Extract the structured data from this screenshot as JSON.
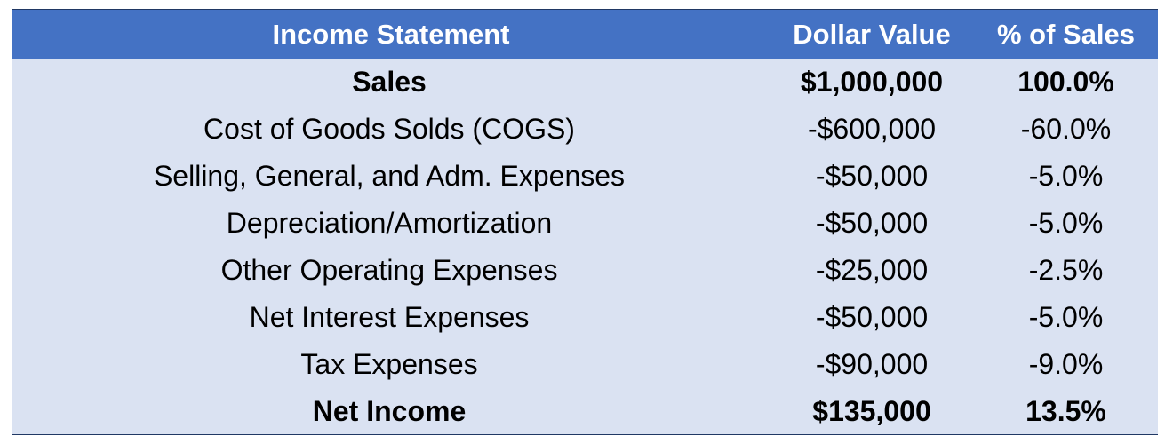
{
  "header": {
    "label": "Income Statement",
    "value": "Dollar Value",
    "pct": "% of Sales"
  },
  "rows": [
    {
      "label": "Sales",
      "value": "$1,000,000",
      "pct": "100.0%",
      "bold": true
    },
    {
      "label": "Cost of Goods Solds (COGS)",
      "value": "-$600,000",
      "pct": "-60.0%",
      "bold": false
    },
    {
      "label": "Selling, General, and Adm. Expenses",
      "value": "-$50,000",
      "pct": "-5.0%",
      "bold": false
    },
    {
      "label": "Depreciation/Amortization",
      "value": "-$50,000",
      "pct": "-5.0%",
      "bold": false
    },
    {
      "label": "Other Operating Expenses",
      "value": "-$25,000",
      "pct": "-2.5%",
      "bold": false
    },
    {
      "label": "Net Interest Expenses",
      "value": "-$50,000",
      "pct": "-5.0%",
      "bold": false
    },
    {
      "label": "Tax Expenses",
      "value": "-$90,000",
      "pct": "-9.0%",
      "bold": false
    },
    {
      "label": "Net Income",
      "value": "$135,000",
      "pct": "13.5%",
      "bold": true
    }
  ],
  "colors": {
    "header_bg": "#4472c4",
    "header_text": "#ffffff",
    "row_bg": "#dae2f2",
    "border": "#203864"
  }
}
